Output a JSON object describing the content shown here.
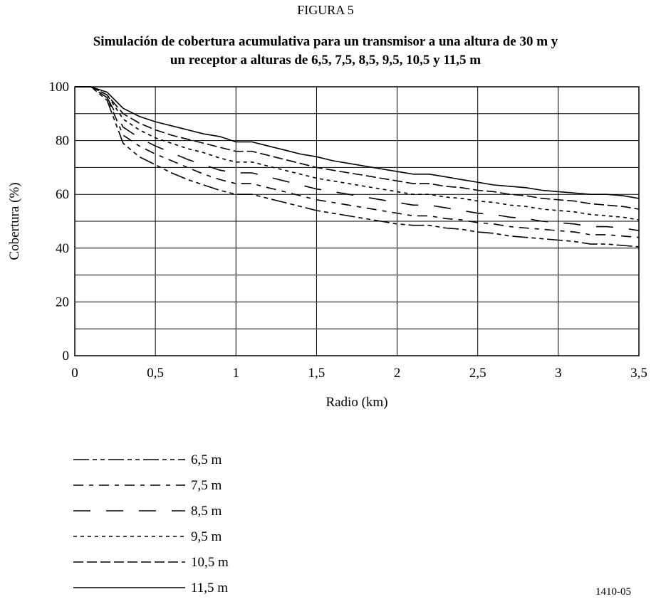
{
  "figure_label": "FIGURA 5",
  "code_label": "1410-05",
  "chart_data": {
    "type": "line",
    "title_line1": "Simulación de cobertura acumulativa para un transmisor a una altura de 30 m y",
    "title_line2": "un receptor a alturas de 6,5, 7,5, 8,5, 9,5, 10,5 y 11,5 m",
    "xlabel": "Radio (km)",
    "ylabel": "Cobertura (%)",
    "xlim": [
      0,
      3.5
    ],
    "ylim": [
      0,
      100
    ],
    "xticks": [
      0,
      0.5,
      1,
      1.5,
      2,
      2.5,
      3,
      3.5
    ],
    "xtick_labels": [
      "0",
      "0,5",
      "1",
      "1,5",
      "2",
      "2,5",
      "3",
      "3,5"
    ],
    "yticks": [
      0,
      20,
      40,
      60,
      80,
      100
    ],
    "ytick_labels": [
      "0",
      "20",
      "40",
      "60",
      "80",
      "100"
    ],
    "grid": true,
    "legend_position": "bottom-left",
    "series": [
      {
        "name": "6,5 m",
        "dash": "22,5,6,5,6,5",
        "x": [
          0,
          0.1,
          0.2,
          0.3,
          0.4,
          0.5,
          0.6,
          0.7,
          0.8,
          0.9,
          1.0,
          1.1,
          1.2,
          1.3,
          1.4,
          1.5,
          1.6,
          1.7,
          1.8,
          1.9,
          2.0,
          2.1,
          2.2,
          2.3,
          2.4,
          2.5,
          2.6,
          2.7,
          2.8,
          2.9,
          3.0,
          3.1,
          3.2,
          3.3,
          3.4,
          3.5
        ],
        "y": [
          100,
          100,
          95,
          79,
          74,
          71,
          68,
          65.5,
          63.5,
          61.5,
          60,
          60,
          58.5,
          57,
          55.5,
          54,
          53,
          52,
          51,
          50,
          49,
          48.5,
          48.5,
          47.5,
          47,
          46,
          45.5,
          44.5,
          44,
          43.5,
          43,
          42.5,
          41.5,
          41.5,
          41,
          40.5
        ]
      },
      {
        "name": "7,5 m",
        "dash": "14,8,6,8",
        "x": [
          0,
          0.1,
          0.2,
          0.3,
          0.4,
          0.5,
          0.6,
          0.7,
          0.8,
          0.9,
          1.0,
          1.1,
          1.2,
          1.3,
          1.4,
          1.5,
          1.6,
          1.7,
          1.8,
          1.9,
          2.0,
          2.1,
          2.2,
          2.3,
          2.4,
          2.5,
          2.6,
          2.7,
          2.8,
          2.9,
          3.0,
          3.1,
          3.2,
          3.3,
          3.4,
          3.5
        ],
        "y": [
          100,
          100,
          96,
          82,
          78,
          75,
          72.5,
          70,
          67.5,
          65.5,
          64,
          64,
          62.5,
          61,
          59.5,
          58,
          57,
          56,
          55,
          54,
          53,
          52,
          52,
          51,
          50.5,
          49.5,
          49,
          48,
          47.5,
          47,
          46.5,
          46,
          45,
          45,
          44.5,
          44
        ]
      },
      {
        "name": "8,5 m",
        "dash": "24,22",
        "x": [
          0,
          0.1,
          0.2,
          0.3,
          0.4,
          0.5,
          0.6,
          0.7,
          0.8,
          0.9,
          1.0,
          1.1,
          1.2,
          1.3,
          1.4,
          1.5,
          1.6,
          1.7,
          1.8,
          1.9,
          2.0,
          2.1,
          2.2,
          2.3,
          2.4,
          2.5,
          2.6,
          2.7,
          2.8,
          2.9,
          3.0,
          3.1,
          3.2,
          3.3,
          3.4,
          3.5
        ],
        "y": [
          100,
          100,
          96,
          85,
          81,
          78,
          75.5,
          73,
          71,
          69,
          68,
          68,
          66.5,
          65,
          63.5,
          62,
          61,
          60,
          59,
          58,
          57,
          56,
          56,
          55,
          54,
          53,
          52.5,
          51.5,
          51,
          50,
          49.5,
          49,
          48,
          48,
          47.5,
          46.5
        ]
      },
      {
        "name": "9,5 m",
        "dash": "5,5",
        "x": [
          0,
          0.1,
          0.2,
          0.3,
          0.4,
          0.5,
          0.6,
          0.7,
          0.8,
          0.9,
          1.0,
          1.1,
          1.2,
          1.3,
          1.4,
          1.5,
          1.6,
          1.7,
          1.8,
          1.9,
          2.0,
          2.1,
          2.2,
          2.3,
          2.4,
          2.5,
          2.6,
          2.7,
          2.8,
          2.9,
          3.0,
          3.1,
          3.2,
          3.3,
          3.4,
          3.5
        ],
        "y": [
          100,
          100,
          97,
          88,
          84,
          81,
          79,
          77,
          75.5,
          73.5,
          72,
          72,
          70.5,
          69,
          67.5,
          66,
          65,
          64,
          63,
          62,
          61,
          60,
          60,
          59,
          58.5,
          57.5,
          57,
          56,
          55.5,
          54.5,
          54,
          53.5,
          52.5,
          52,
          51.5,
          50.5
        ]
      },
      {
        "name": "10,5 m",
        "dash": "14,5",
        "x": [
          0,
          0.1,
          0.2,
          0.3,
          0.4,
          0.5,
          0.6,
          0.7,
          0.8,
          0.9,
          1.0,
          1.1,
          1.2,
          1.3,
          1.4,
          1.5,
          1.6,
          1.7,
          1.8,
          1.9,
          2.0,
          2.1,
          2.2,
          2.3,
          2.4,
          2.5,
          2.6,
          2.7,
          2.8,
          2.9,
          3.0,
          3.1,
          3.2,
          3.3,
          3.4,
          3.5
        ],
        "y": [
          100,
          100,
          97,
          90,
          86.5,
          84,
          82,
          80.5,
          79,
          77.5,
          76,
          76,
          74.5,
          73,
          71.5,
          70,
          69,
          68,
          67,
          66,
          65,
          64,
          64,
          63,
          62.5,
          61.5,
          61,
          60,
          59.5,
          58.5,
          58,
          57.5,
          56.5,
          56,
          55.5,
          54.5
        ]
      },
      {
        "name": "11,5 m",
        "dash": "",
        "x": [
          0,
          0.1,
          0.2,
          0.3,
          0.4,
          0.5,
          0.6,
          0.7,
          0.8,
          0.9,
          1.0,
          1.1,
          1.2,
          1.3,
          1.4,
          1.5,
          1.6,
          1.7,
          1.8,
          1.9,
          2.0,
          2.1,
          2.2,
          2.3,
          2.4,
          2.5,
          2.6,
          2.7,
          2.8,
          2.9,
          3.0,
          3.1,
          3.2,
          3.3,
          3.4,
          3.5
        ],
        "y": [
          100,
          100,
          98,
          92,
          89,
          87,
          85.5,
          84,
          82.5,
          81.5,
          79.5,
          79.5,
          78,
          76.5,
          75,
          74,
          72.5,
          71.5,
          70.5,
          69.5,
          68.5,
          67.5,
          67.5,
          66.5,
          65.5,
          64.5,
          63.5,
          63,
          62.5,
          61.5,
          61,
          60.5,
          60,
          60,
          59.5,
          58.5
        ]
      }
    ]
  }
}
